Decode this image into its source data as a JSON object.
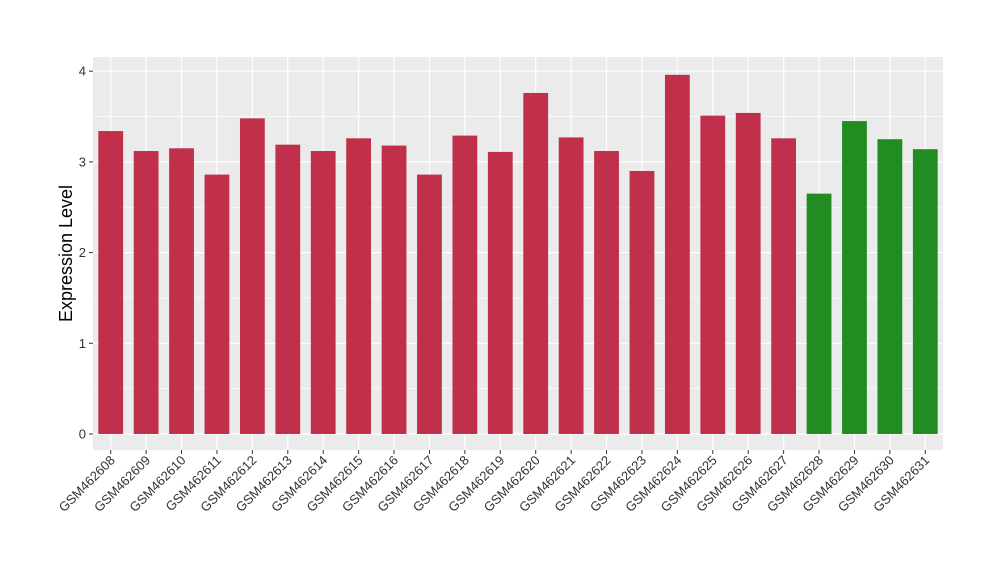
{
  "chart_data": {
    "type": "bar",
    "ylabel": "Expression Level",
    "xlabel": "",
    "ylim": [
      0,
      4.15
    ],
    "yticks": [
      0,
      1,
      2,
      3,
      4
    ],
    "grid": true,
    "categories": [
      "GSM462608",
      "GSM462609",
      "GSM462610",
      "GSM462611",
      "GSM462612",
      "GSM462613",
      "GSM462614",
      "GSM462615",
      "GSM462616",
      "GSM462617",
      "GSM462618",
      "GSM462619",
      "GSM462620",
      "GSM462621",
      "GSM462622",
      "GSM462623",
      "GSM462624",
      "GSM462625",
      "GSM462626",
      "GSM462627",
      "GSM462628",
      "GSM462629",
      "GSM462630",
      "GSM462631"
    ],
    "values": [
      3.34,
      3.12,
      3.15,
      2.86,
      3.48,
      3.19,
      3.12,
      3.26,
      3.18,
      2.86,
      3.29,
      3.11,
      3.76,
      3.27,
      3.12,
      2.9,
      3.96,
      3.51,
      3.54,
      3.26,
      2.65,
      3.45,
      3.25,
      3.14
    ],
    "bar_colors": [
      "#c0304a",
      "#c0304a",
      "#c0304a",
      "#c0304a",
      "#c0304a",
      "#c0304a",
      "#c0304a",
      "#c0304a",
      "#c0304a",
      "#c0304a",
      "#c0304a",
      "#c0304a",
      "#c0304a",
      "#c0304a",
      "#c0304a",
      "#c0304a",
      "#c0304a",
      "#c0304a",
      "#c0304a",
      "#c0304a",
      "#228b22",
      "#228b22",
      "#228b22",
      "#228b22"
    ],
    "panel_background": "#ebebeb",
    "grid_color": "#ffffff"
  }
}
